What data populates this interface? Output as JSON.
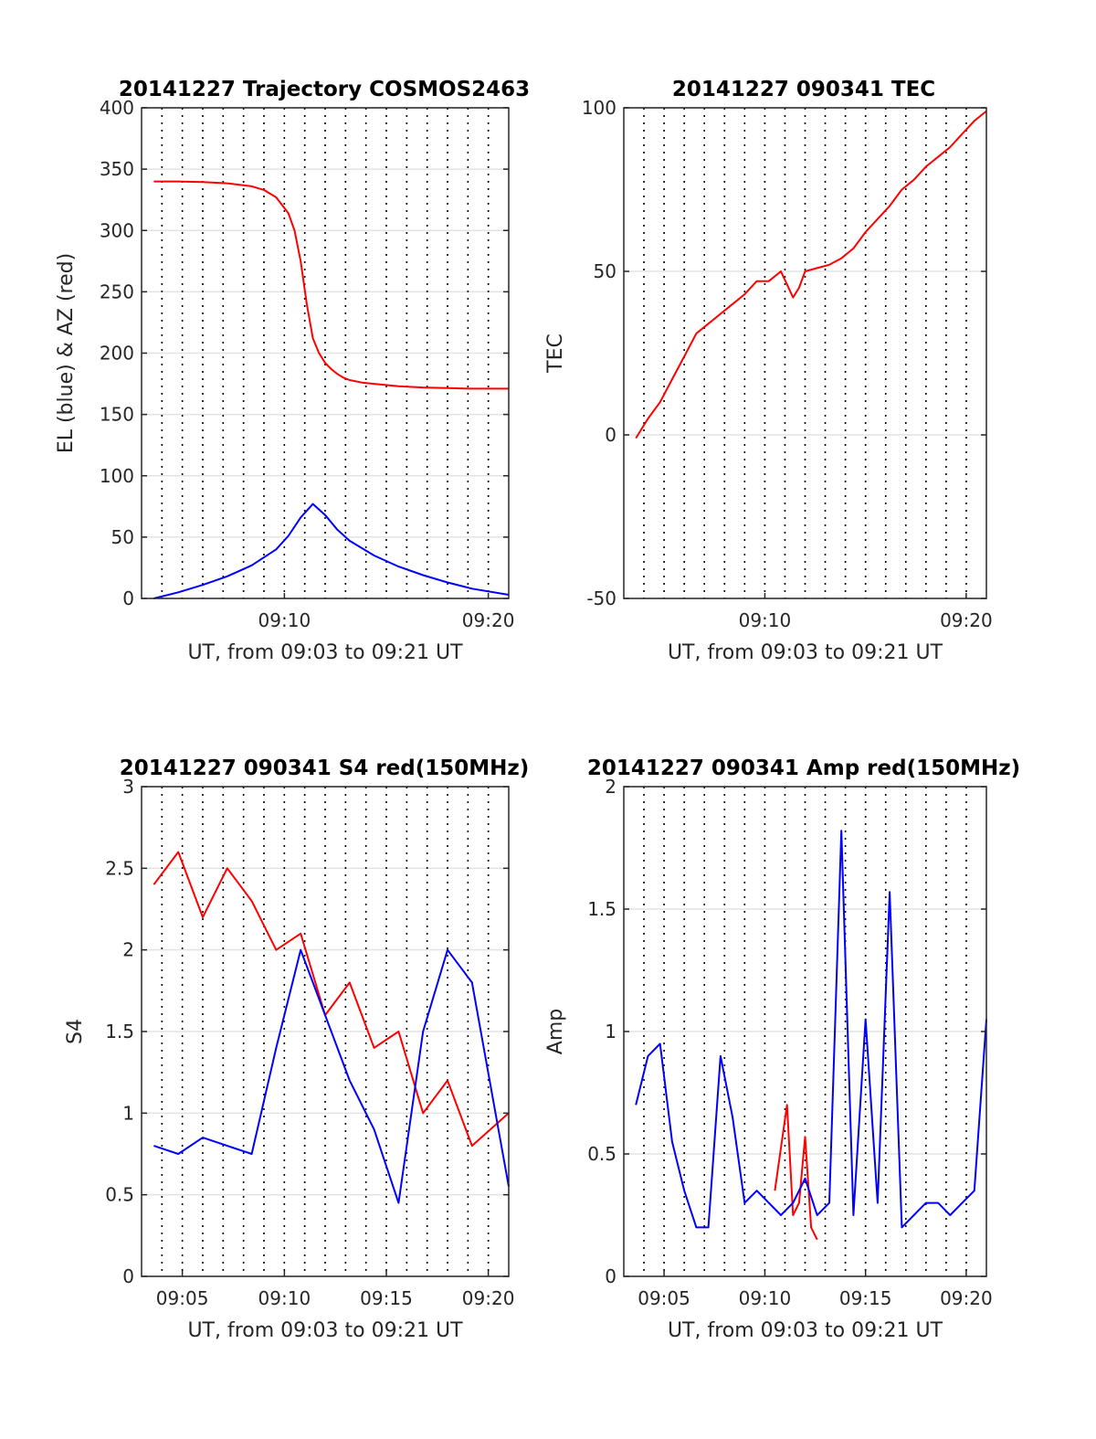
{
  "chart_data": [
    {
      "id": "trajectory",
      "type": "line",
      "title": "20141227 Trajectory COSMOS2463",
      "xlabel": "UT, from 09:03 to 09:21 UT",
      "ylabel": "EL (blue) & AZ (red)",
      "xlim": [
        9.05,
        9.35
      ],
      "x_unit": "UT hours",
      "ylim": [
        0,
        400
      ],
      "yticks": [
        0,
        50,
        100,
        150,
        200,
        250,
        300,
        350,
        400
      ],
      "xticks": [
        {
          "value": 9.1667,
          "label": "09:10"
        },
        {
          "value": 9.3333,
          "label": "09:20"
        }
      ],
      "grid": "horizontal solid, vertical dotted",
      "series": [
        {
          "color": "#ff0000",
          "x": [
            9.06,
            9.08,
            9.1,
            9.12,
            9.14,
            9.15,
            9.16,
            9.17,
            9.175,
            9.18,
            9.185,
            9.19,
            9.195,
            9.2,
            9.205,
            9.21,
            9.215,
            9.22,
            9.23,
            9.24,
            9.26,
            9.28,
            9.3,
            9.32,
            9.35
          ],
          "values": [
            340,
            340,
            339.5,
            338.5,
            336,
            333,
            327,
            314,
            300,
            275,
            240,
            212,
            200,
            192,
            187,
            183,
            180,
            178,
            176,
            175,
            173,
            172,
            171.5,
            171,
            171
          ]
        },
        {
          "color": "#0000ff",
          "x": [
            9.06,
            9.08,
            9.1,
            9.12,
            9.14,
            9.16,
            9.17,
            9.18,
            9.19,
            9.2,
            9.21,
            9.22,
            9.24,
            9.26,
            9.28,
            9.3,
            9.32,
            9.35
          ],
          "values": [
            0,
            5,
            11,
            18,
            27,
            40,
            51,
            66,
            77,
            68,
            56,
            47,
            35,
            26,
            19,
            13,
            8,
            3
          ]
        }
      ]
    },
    {
      "id": "tec",
      "type": "line",
      "title": "20141227 090341 TEC",
      "xlabel": "UT, from 09:03 to 09:21 UT",
      "ylabel": "TEC",
      "xlim": [
        9.05,
        9.35
      ],
      "x_unit": "UT hours",
      "ylim": [
        -50,
        100
      ],
      "yticks": [
        -50,
        0,
        50,
        100
      ],
      "xticks": [
        {
          "value": 9.1667,
          "label": "09:10"
        },
        {
          "value": 9.3333,
          "label": "09:20"
        }
      ],
      "grid": "horizontal solid, vertical dotted",
      "series": [
        {
          "color": "#ff0000",
          "x": [
            9.06,
            9.07,
            9.08,
            9.09,
            9.1,
            9.11,
            9.12,
            9.13,
            9.14,
            9.15,
            9.16,
            9.17,
            9.18,
            9.19,
            9.195,
            9.2,
            9.21,
            9.22,
            9.23,
            9.24,
            9.25,
            9.26,
            9.27,
            9.28,
            9.29,
            9.3,
            9.31,
            9.32,
            9.33,
            9.34,
            9.35
          ],
          "values": [
            -1,
            5,
            10,
            17,
            24,
            31,
            34,
            37,
            40,
            43,
            47,
            47,
            50,
            42,
            45,
            50,
            51,
            52,
            54,
            57,
            62,
            66,
            70,
            75,
            78,
            82,
            85,
            88,
            92,
            96,
            99
          ]
        }
      ]
    },
    {
      "id": "s4",
      "type": "line",
      "title": "20141227 090341 S4 red(150MHz)",
      "xlabel": "UT, from 09:03 to 09:21 UT",
      "ylabel": "S4",
      "xlim": [
        9.05,
        9.35
      ],
      "x_unit": "UT hours",
      "ylim": [
        0,
        3
      ],
      "yticks": [
        0,
        0.5,
        1,
        1.5,
        2,
        2.5,
        3
      ],
      "xticks": [
        {
          "value": 9.0833,
          "label": "09:05"
        },
        {
          "value": 9.1667,
          "label": "09:10"
        },
        {
          "value": 9.25,
          "label": "09:15"
        },
        {
          "value": 9.3333,
          "label": "09:20"
        }
      ],
      "grid": "horizontal solid, vertical dotted",
      "series": [
        {
          "color": "#ff0000",
          "x": [
            9.06,
            9.08,
            9.1,
            9.12,
            9.14,
            9.16,
            9.18,
            9.2,
            9.22,
            9.24,
            9.26,
            9.28,
            9.3,
            9.32,
            9.35
          ],
          "values": [
            2.4,
            2.6,
            2.2,
            2.5,
            2.3,
            2.0,
            2.1,
            1.6,
            1.8,
            1.4,
            1.5,
            1.0,
            1.2,
            0.8,
            1.0
          ]
        },
        {
          "color": "#0000ff",
          "x": [
            9.06,
            9.08,
            9.1,
            9.12,
            9.14,
            9.16,
            9.18,
            9.2,
            9.22,
            9.24,
            9.26,
            9.28,
            9.3,
            9.32,
            9.35
          ],
          "values": [
            0.8,
            0.75,
            0.85,
            0.8,
            0.75,
            1.4,
            2.0,
            1.6,
            1.2,
            0.9,
            0.45,
            1.5,
            2.0,
            1.8,
            0.55
          ]
        }
      ]
    },
    {
      "id": "amp",
      "type": "line",
      "title": "20141227 090341 Amp red(150MHz)",
      "xlabel": "UT, from 09:03 to 09:21 UT",
      "ylabel": "Amp",
      "xlim": [
        9.05,
        9.35
      ],
      "x_unit": "UT hours",
      "ylim": [
        0,
        2
      ],
      "yticks": [
        0,
        0.5,
        1,
        1.5,
        2
      ],
      "xticks": [
        {
          "value": 9.0833,
          "label": "09:05"
        },
        {
          "value": 9.1667,
          "label": "09:10"
        },
        {
          "value": 9.25,
          "label": "09:15"
        },
        {
          "value": 9.3333,
          "label": "09:20"
        }
      ],
      "grid": "horizontal solid, vertical dotted",
      "series": [
        {
          "color": "#ff0000",
          "x": [
            9.175,
            9.185,
            9.19,
            9.195,
            9.2,
            9.205,
            9.21
          ],
          "values": [
            0.35,
            0.7,
            0.25,
            0.3,
            0.57,
            0.2,
            0.15
          ]
        },
        {
          "color": "#0000ff",
          "x": [
            9.06,
            9.07,
            9.08,
            9.09,
            9.1,
            9.11,
            9.12,
            9.13,
            9.14,
            9.15,
            9.16,
            9.17,
            9.18,
            9.19,
            9.2,
            9.21,
            9.22,
            9.23,
            9.24,
            9.25,
            9.26,
            9.27,
            9.28,
            9.29,
            9.3,
            9.31,
            9.32,
            9.33,
            9.34,
            9.35
          ],
          "values": [
            0.7,
            0.9,
            0.95,
            0.55,
            0.35,
            0.2,
            0.2,
            0.9,
            0.65,
            0.3,
            0.35,
            0.3,
            0.25,
            0.3,
            0.4,
            0.25,
            0.3,
            1.82,
            0.25,
            1.05,
            0.3,
            1.57,
            0.2,
            0.25,
            0.3,
            0.3,
            0.25,
            0.3,
            0.35,
            1.05
          ]
        }
      ]
    }
  ]
}
